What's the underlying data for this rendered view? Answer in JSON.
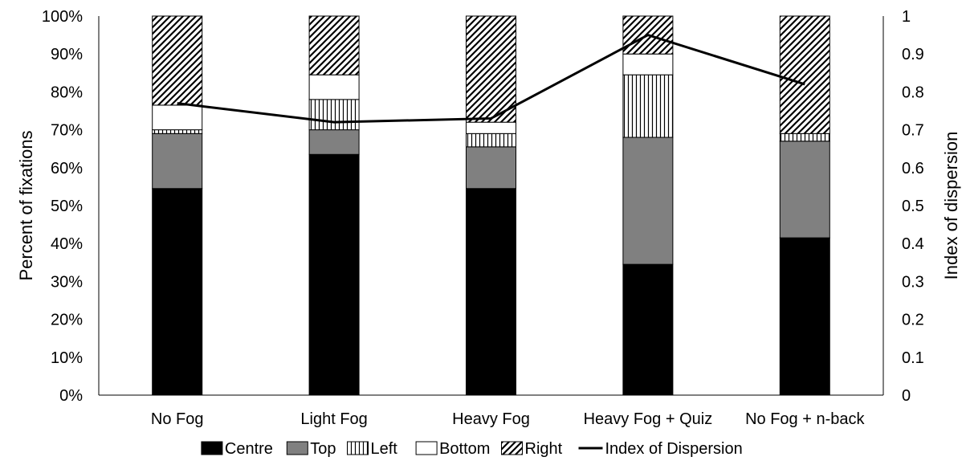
{
  "chart_data": {
    "type": "bar",
    "stacked": true,
    "title": "",
    "ylabel": "Percent of fixations",
    "y2label": "Index of dispersion",
    "ylim": [
      0,
      100
    ],
    "y2lim": [
      0,
      1
    ],
    "y_ticks": [
      "0%",
      "10%",
      "20%",
      "30%",
      "40%",
      "50%",
      "60%",
      "70%",
      "80%",
      "90%",
      "100%"
    ],
    "y2_ticks": [
      "0",
      "0.1",
      "0.2",
      "0.3",
      "0.4",
      "0.5",
      "0.6",
      "0.7",
      "0.8",
      "0.9",
      "1"
    ],
    "categories": [
      "No Fog",
      "Light Fog",
      "Heavy Fog",
      "Heavy Fog + Quiz",
      "No Fog + n-back"
    ],
    "series": [
      {
        "name": "Centre",
        "fill": "#000000",
        "pattern": "solid",
        "values": [
          54.5,
          63.5,
          54.5,
          34.5,
          41.5
        ]
      },
      {
        "name": "Top",
        "fill": "#808080",
        "pattern": "solid",
        "values": [
          14.5,
          6.5,
          11.0,
          33.5,
          25.5
        ]
      },
      {
        "name": "Left",
        "fill": "#ffffff",
        "pattern": "vertical-lines",
        "values": [
          1.0,
          8.0,
          3.5,
          16.5,
          2.0
        ]
      },
      {
        "name": "Bottom",
        "fill": "#ffffff",
        "pattern": "solid",
        "values": [
          6.5,
          6.5,
          3.0,
          5.5,
          0.0
        ]
      },
      {
        "name": "Right",
        "fill": "#ffffff",
        "pattern": "diagonal-hatch",
        "values": [
          23.5,
          15.5,
          28.0,
          10.0,
          31.0
        ]
      }
    ],
    "line_series": {
      "name": "Index of Dispersion",
      "color": "#000000",
      "axis": "y2",
      "values": [
        0.77,
        0.72,
        0.73,
        0.95,
        0.82
      ]
    },
    "legend_position": "bottom",
    "grid": false
  }
}
